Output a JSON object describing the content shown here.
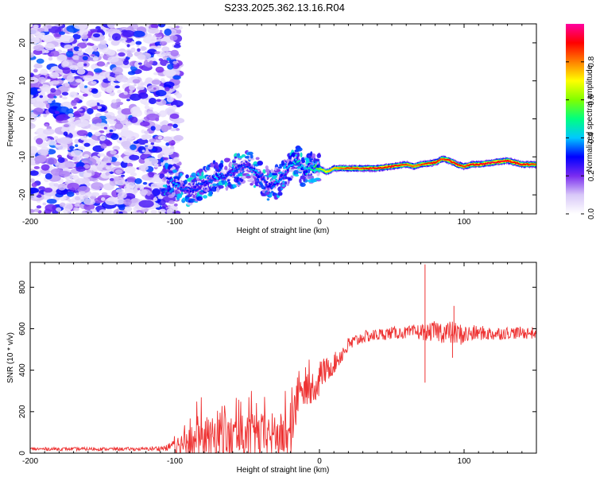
{
  "title": "S233.2025.362.13.16.R04",
  "chart_data": [
    {
      "type": "heatmap",
      "xlabel": "Height of straight line (km)",
      "ylabel": "Frequency (Hz)",
      "xlim": [
        -200,
        150
      ],
      "ylim": [
        -25,
        25
      ],
      "x_ticks": [
        -200,
        -100,
        0,
        100
      ],
      "y_ticks": [
        -20,
        -10,
        0,
        10,
        20
      ],
      "grid": false,
      "colorbar": {
        "label": "Normalized spectral amplitude",
        "range": [
          0.0,
          1.0
        ],
        "ticks": [
          "0.0",
          "0.2",
          "0.4",
          "0.6",
          "0.8"
        ],
        "colors": [
          "#ffffff",
          "#d8c8f8",
          "#7a2cf0",
          "#0000ff",
          "#00c8ff",
          "#00ff80",
          "#80ff00",
          "#ffff00",
          "#ff8000",
          "#ff0000",
          "#ff00a0"
        ]
      },
      "noise_region_x": [
        -200,
        -105
      ],
      "ridge": {
        "x": [
          -105,
          -100,
          -95,
          -90,
          -85,
          -80,
          -75,
          -70,
          -65,
          -60,
          -55,
          -50,
          -45,
          -40,
          -35,
          -30,
          -25,
          -20,
          -15,
          -10,
          -5,
          0,
          5,
          10,
          15,
          20,
          30,
          40,
          50,
          60,
          65,
          70,
          80,
          85,
          90,
          95,
          100,
          105,
          110,
          120,
          130,
          140,
          150
        ],
        "y": [
          -16,
          -17,
          -18,
          -19,
          -18,
          -17,
          -16,
          -15,
          -15,
          -14,
          -13,
          -12,
          -14,
          -15,
          -18,
          -17,
          -15,
          -12,
          -11,
          -14,
          -13,
          -13,
          -14,
          -13,
          -13,
          -13,
          -13,
          -13,
          -12.5,
          -12,
          -12.5,
          -12,
          -11.5,
          -10.5,
          -11,
          -12,
          -12.5,
          -12,
          -12,
          -11.5,
          -11,
          -12,
          -12
        ],
        "amplitude": [
          0.3,
          0.4,
          0.35,
          0.3,
          0.35,
          0.3,
          0.35,
          0.4,
          0.3,
          0.35,
          0.35,
          0.3,
          0.4,
          0.35,
          0.3,
          0.4,
          0.35,
          0.4,
          0.45,
          0.4,
          0.5,
          0.6,
          0.7,
          0.75,
          0.8,
          0.85,
          0.85,
          0.9,
          0.9,
          0.85,
          0.8,
          0.85,
          0.9,
          0.85,
          0.9,
          0.9,
          0.85,
          0.9,
          0.9,
          0.95,
          0.9,
          0.9,
          0.85
        ]
      }
    },
    {
      "type": "line",
      "xlabel": "Height of straight line (km)",
      "ylabel": "SNR (10 * v/v)",
      "xlim": [
        -200,
        150
      ],
      "ylim": [
        0,
        920
      ],
      "x_ticks": [
        -200,
        -100,
        0,
        100
      ],
      "y_ticks": [
        0,
        200,
        400,
        600,
        800
      ],
      "grid": false,
      "series": [
        {
          "name": "SNR",
          "color": "#ee3333",
          "envelope_x": [
            -200,
            -120,
            -105,
            -100,
            -95,
            -90,
            -80,
            -70,
            -60,
            -50,
            -40,
            -30,
            -20,
            -15,
            -10,
            -5,
            0,
            5,
            10,
            20,
            30,
            40,
            50,
            60,
            70,
            72,
            75,
            80,
            90,
            100,
            110,
            120,
            130,
            140,
            150
          ],
          "envelope_mean": [
            20,
            20,
            25,
            50,
            70,
            85,
            100,
            110,
            115,
            120,
            125,
            130,
            120,
            280,
            330,
            350,
            380,
            400,
            430,
            520,
            560,
            570,
            580,
            580,
            585,
            585,
            580,
            590,
            580,
            570,
            580,
            575,
            580,
            580,
            580
          ],
          "envelope_spread": [
            8,
            8,
            15,
            40,
            60,
            80,
            100,
            110,
            110,
            110,
            110,
            110,
            110,
            80,
            70,
            80,
            80,
            60,
            50,
            40,
            30,
            30,
            30,
            30,
            40,
            40,
            40,
            50,
            60,
            50,
            35,
            35,
            30,
            30,
            30
          ],
          "spikes": [
            {
              "x": 73,
              "y": 910
            },
            {
              "x": 73,
              "y": 340
            },
            {
              "x": 93,
              "y": 710
            },
            {
              "x": 92,
              "y": 460
            }
          ]
        }
      ]
    }
  ]
}
